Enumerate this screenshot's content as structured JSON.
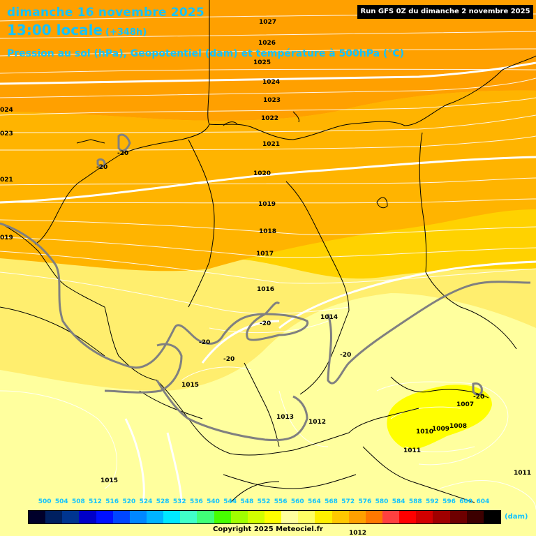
{
  "header": {
    "date_line": "dimanche 16 novembre 2025",
    "time_line": "13:00 locale",
    "lead_time": "(+348h)",
    "parameter_line": "Pression au sol (hPa), Geopotentiel (dam) et température à 500hPa (°C)",
    "run_info": "Run GFS 0Z du dimanche 2 novembre 2025"
  },
  "pressure_labels": [
    "1027",
    "1026",
    "1025",
    "1024",
    "1023",
    "1022",
    "1021",
    "1020",
    "1019",
    "1018",
    "1017",
    "1016",
    "1015",
    "1015",
    "1014",
    "1013",
    "1012",
    "1012",
    "1011",
    "1011",
    "1010",
    "1009",
    "1008",
    "1007",
    "024",
    "023",
    "021",
    "019"
  ],
  "temperature_labels": [
    "-20",
    "-20",
    "-20",
    "-20",
    "-20",
    "-20",
    "-20"
  ],
  "legend": {
    "ticks": [
      "500",
      "504",
      "508",
      "512",
      "516",
      "520",
      "524",
      "528",
      "532",
      "536",
      "540",
      "544",
      "548",
      "552",
      "556",
      "560",
      "564",
      "568",
      "572",
      "576",
      "580",
      "584",
      "588",
      "592",
      "596",
      "600",
      "604"
    ],
    "colors": [
      "#00002a",
      "#002060",
      "#003590",
      "#0000c8",
      "#0010ff",
      "#0046ff",
      "#0087ff",
      "#00b4ff",
      "#00e8ff",
      "#40ffc8",
      "#40ff78",
      "#46ff00",
      "#a0ff00",
      "#d2ff00",
      "#ffff00",
      "#ffff9e",
      "#ffff64",
      "#fff000",
      "#ffc800",
      "#ffa000",
      "#ff7800",
      "#ff4040",
      "#ff0000",
      "#d20000",
      "#a00000",
      "#6e0000",
      "#3c0000",
      "#000000"
    ],
    "unit": "(dam)"
  },
  "copyright": "Copyright 2025 Meteociel.fr"
}
